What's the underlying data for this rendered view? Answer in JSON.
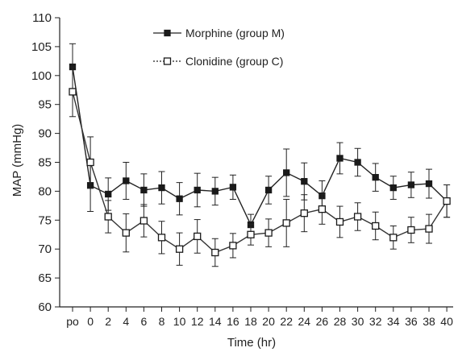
{
  "chart_data": {
    "type": "line",
    "xlabel": "Time (hr)",
    "ylabel": "MAP (mmHg)",
    "categories": [
      "po",
      "0",
      "2",
      "4",
      "6",
      "8",
      "10",
      "12",
      "14",
      "16",
      "18",
      "20",
      "22",
      "24",
      "26",
      "28",
      "30",
      "32",
      "34",
      "36",
      "38",
      "40"
    ],
    "ylim": [
      60,
      110
    ],
    "yticks": [
      60,
      65,
      70,
      75,
      80,
      85,
      90,
      95,
      100,
      105,
      110
    ],
    "grid": false,
    "legend_position": "top-center",
    "series": [
      {
        "name": "Morphine (group M)",
        "marker": "filled-square",
        "values": [
          101.5,
          81.0,
          79.5,
          81.8,
          80.2,
          80.6,
          78.7,
          80.2,
          80.0,
          80.7,
          74.2,
          80.2,
          83.2,
          81.7,
          79.2,
          85.7,
          85.0,
          82.4,
          80.6,
          81.1,
          81.3,
          78.3
        ],
        "errors": [
          4.0,
          4.5,
          2.8,
          3.2,
          2.8,
          2.8,
          2.8,
          2.9,
          2.4,
          2.1,
          1.8,
          2.4,
          4.1,
          3.2,
          2.6,
          2.7,
          2.4,
          2.4,
          2.0,
          2.2,
          2.5,
          2.8
        ]
      },
      {
        "name": "Clonidine (group C)",
        "marker": "open-square",
        "values": [
          97.2,
          85.0,
          75.6,
          72.8,
          74.9,
          72.0,
          70.0,
          72.2,
          69.4,
          70.6,
          72.5,
          72.8,
          74.5,
          76.2,
          76.9,
          74.7,
          75.6,
          74.0,
          72.0,
          73.3,
          73.5,
          78.3
        ],
        "errors": [
          4.3,
          4.4,
          2.8,
          3.3,
          2.8,
          2.8,
          2.8,
          2.9,
          2.4,
          2.1,
          1.8,
          2.4,
          4.1,
          3.2,
          2.6,
          2.7,
          2.4,
          2.4,
          2.0,
          2.2,
          2.5,
          2.8
        ]
      }
    ]
  }
}
